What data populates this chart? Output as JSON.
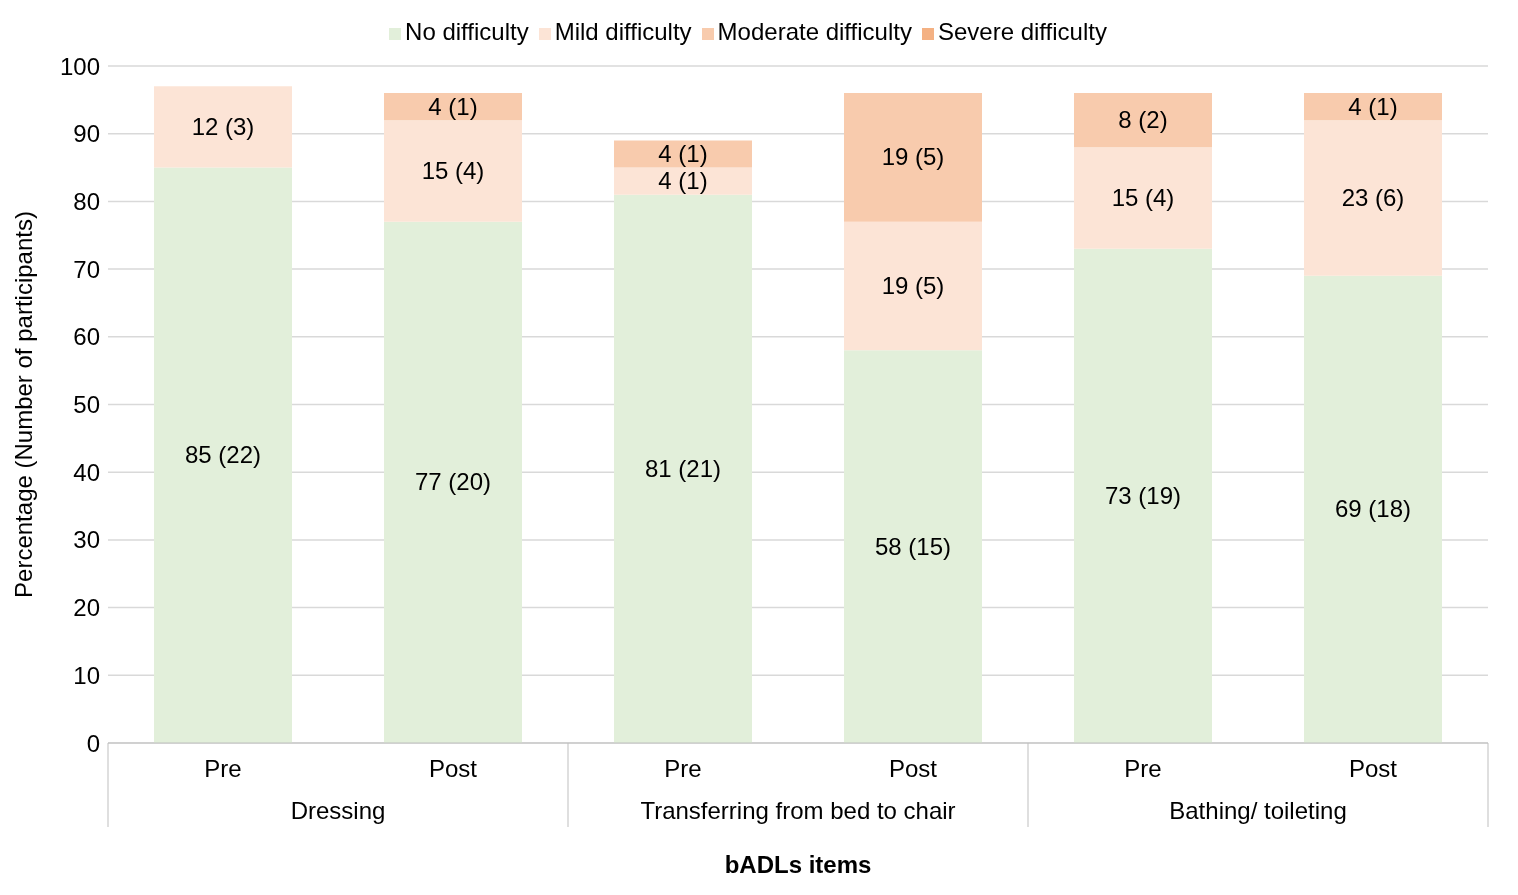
{
  "chart_data": {
    "type": "bar",
    "stacked": true,
    "xlabel": "bADLs items",
    "ylabel": "Percentage (Number of participants)",
    "categories": [
      "Pre",
      "Post",
      "Pre",
      "Post",
      "Pre",
      "Post"
    ],
    "annotations": [
      "Dressing",
      "Transferring from bed to chair",
      "Bathing/ toileting"
    ],
    "ylim": [
      0,
      100
    ],
    "yticks": [
      0,
      10,
      20,
      30,
      40,
      50,
      60,
      70,
      80,
      90,
      100
    ],
    "grid": "y",
    "legend": "top",
    "series": [
      {
        "name": "No difficulty",
        "color": "#e2efda",
        "values": [
          85,
          77,
          81,
          58,
          73,
          69
        ],
        "value_labels": [
          "85 (22)",
          "77 (20)",
          "81 (21)",
          "58 (15)",
          "73 (19)",
          "69 (18)"
        ]
      },
      {
        "name": "Mild difficulty",
        "color": "#fce4d6",
        "values": [
          12,
          15,
          4,
          19,
          15,
          23
        ],
        "value_labels": [
          "12 (3)",
          "15 (4)",
          "4 (1)",
          "19 (5)",
          "15 (4)",
          "23 (6)"
        ]
      },
      {
        "name": "Moderate difficulty",
        "color": "#f8cbad",
        "values": [
          null,
          4,
          4,
          19,
          8,
          4
        ],
        "value_labels": [
          null,
          "4 (1)",
          "4 (1)",
          "19 (5)",
          "8 (2)",
          "4 (1)"
        ]
      },
      {
        "name": "Severe difficulty",
        "color": "#f4b183",
        "values": [
          null,
          null,
          null,
          null,
          null,
          null
        ]
      }
    ]
  }
}
